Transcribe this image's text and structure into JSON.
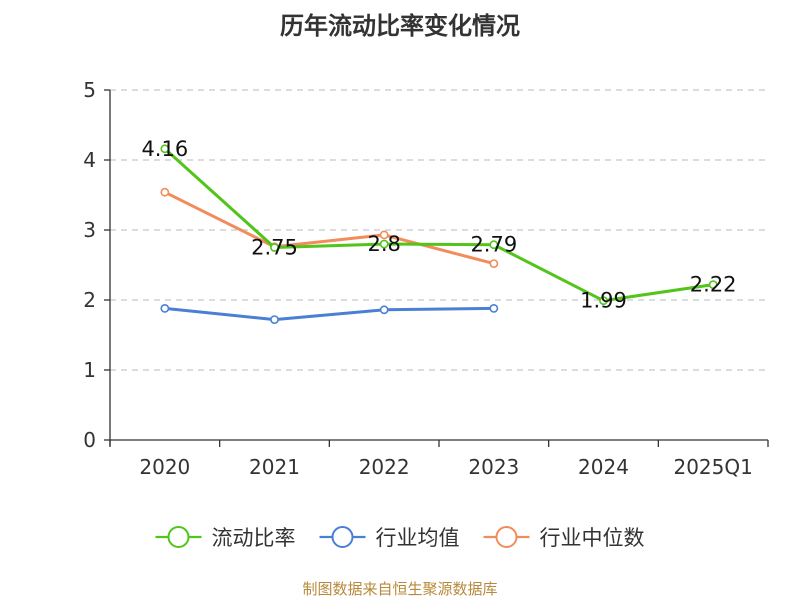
{
  "chart_data": {
    "type": "line",
    "title": "历年流动比率变化情况",
    "categories": [
      "2020",
      "2021",
      "2022",
      "2023",
      "2024",
      "2025Q1"
    ],
    "ylim": [
      0,
      5
    ],
    "yticks": [
      "0",
      "1",
      "2",
      "3",
      "4",
      "5"
    ],
    "grid": true,
    "legend_position": "bottom",
    "series": [
      {
        "name": "流动比率",
        "color": "#52c41a",
        "values": [
          4.16,
          2.75,
          2.8,
          2.79,
          1.99,
          2.22
        ],
        "labels": [
          "4.16",
          "2.75",
          "2.8",
          "2.79",
          "1.99",
          "2.22"
        ]
      },
      {
        "name": "行业均值",
        "color": "#4a7fd6",
        "values": [
          1.88,
          1.72,
          1.86,
          1.88,
          null,
          null
        ]
      },
      {
        "name": "行业中位数",
        "color": "#f28c5a",
        "values": [
          3.54,
          2.76,
          2.93,
          2.52,
          null,
          null
        ]
      }
    ],
    "source": "制图数据来自恒生聚源数据库"
  }
}
